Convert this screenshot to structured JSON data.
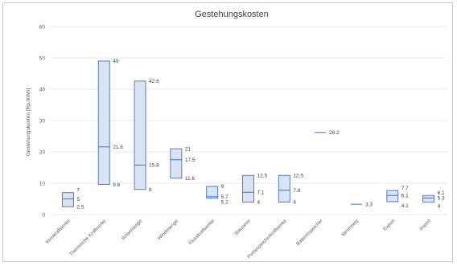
{
  "chart_data": {
    "type": "bar",
    "title": "Gestehungskosten",
    "xlabel": "",
    "ylabel": "Gestehungskosten [Rp./kWh]",
    "ylim": [
      0,
      60
    ],
    "yticks": [
      "0",
      "10",
      "20",
      "30",
      "40",
      "50",
      "60"
    ],
    "grid": true,
    "colors": {
      "fill": "#dae3f3",
      "stroke": "#4472c4"
    },
    "categories": [
      "Kernkraftwerke",
      "Thermische Kraftwerke",
      "Solarenergie",
      "Windenergie",
      "Flusskraftwerke",
      "Stauseen",
      "Pumpspeicherkraftwerke",
      "Batteriespeicher",
      "Stromnetz",
      "Export",
      "Import"
    ],
    "series": [
      {
        "name": "max",
        "values": [
          7,
          49,
          42.6,
          21,
          9,
          12.5,
          12.5,
          null,
          null,
          7.7,
          6.1
        ]
      },
      {
        "name": "mid",
        "values": [
          5,
          21.6,
          15.8,
          17.5,
          5.7,
          7.1,
          7.8,
          26.2,
          3.3,
          6.1,
          5.3
        ]
      },
      {
        "name": "min",
        "values": [
          2.5,
          9.6,
          8,
          11.6,
          5.2,
          4,
          4,
          null,
          null,
          4.1,
          4
        ]
      }
    ],
    "labels": [
      [
        "7",
        "5",
        "2.5"
      ],
      [
        "49",
        "21.6",
        "9.6"
      ],
      [
        "42.6",
        "15.8",
        "8"
      ],
      [
        "21",
        "17.5",
        "11.6"
      ],
      [
        "9",
        "5.7",
        "5.2"
      ],
      [
        "12.5",
        "7.1",
        "4"
      ],
      [
        "12.5",
        "7.8",
        "4"
      ],
      [
        "",
        "26.2",
        ""
      ],
      [
        "",
        "3.3",
        ""
      ],
      [
        "7.7",
        "6.1",
        "4.1"
      ],
      [
        "6.1",
        "5.3",
        "4"
      ]
    ]
  }
}
